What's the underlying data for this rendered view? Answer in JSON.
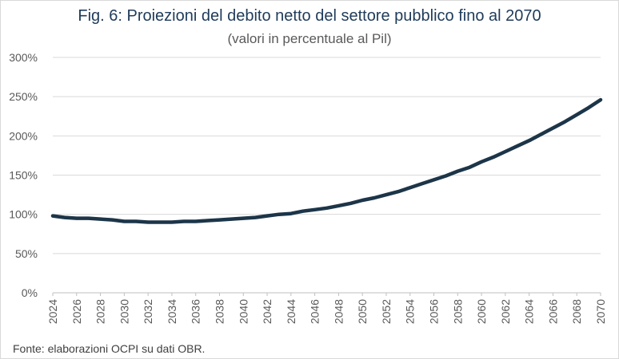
{
  "chart_data": {
    "type": "line",
    "title": "Fig. 6: Proiezioni del debito netto del settore pubblico fino al 2070",
    "subtitle": "(valori in percentuale al Pil)",
    "x": [
      2024,
      2025,
      2026,
      2027,
      2028,
      2029,
      2030,
      2031,
      2032,
      2033,
      2034,
      2035,
      2036,
      2037,
      2038,
      2039,
      2040,
      2041,
      2042,
      2043,
      2044,
      2045,
      2046,
      2047,
      2048,
      2049,
      2050,
      2051,
      2052,
      2053,
      2054,
      2055,
      2056,
      2057,
      2058,
      2059,
      2060,
      2061,
      2062,
      2063,
      2064,
      2065,
      2066,
      2067,
      2068,
      2069,
      2070
    ],
    "x_tick_labels": [
      "2024",
      "2026",
      "2028",
      "2030",
      "2032",
      "2034",
      "2036",
      "2038",
      "2040",
      "2042",
      "2044",
      "2046",
      "2048",
      "2050",
      "2052",
      "2054",
      "2056",
      "2058",
      "2060",
      "2062",
      "2064",
      "2066",
      "2068",
      "2070"
    ],
    "series": [
      {
        "values": [
          98,
          96,
          95,
          95,
          94,
          93,
          91,
          91,
          90,
          90,
          90,
          91,
          91,
          92,
          93,
          94,
          95,
          96,
          98,
          100,
          101,
          104,
          106,
          108,
          111,
          114,
          118,
          121,
          125,
          129,
          134,
          139,
          144,
          149,
          155,
          160,
          167,
          173,
          180,
          187,
          194,
          202,
          210,
          218,
          227,
          236,
          246
        ],
        "color": "#1c3549"
      }
    ],
    "ylim": [
      0,
      300
    ],
    "y_ticks": [
      0,
      50,
      100,
      150,
      200,
      250,
      300
    ],
    "y_tick_labels": [
      "0%",
      "50%",
      "100%",
      "150%",
      "200%",
      "250%",
      "300%"
    ],
    "grid": "horizontal",
    "legend": "none"
  },
  "source": "Fonte: elaborazioni OCPI su dati OBR."
}
